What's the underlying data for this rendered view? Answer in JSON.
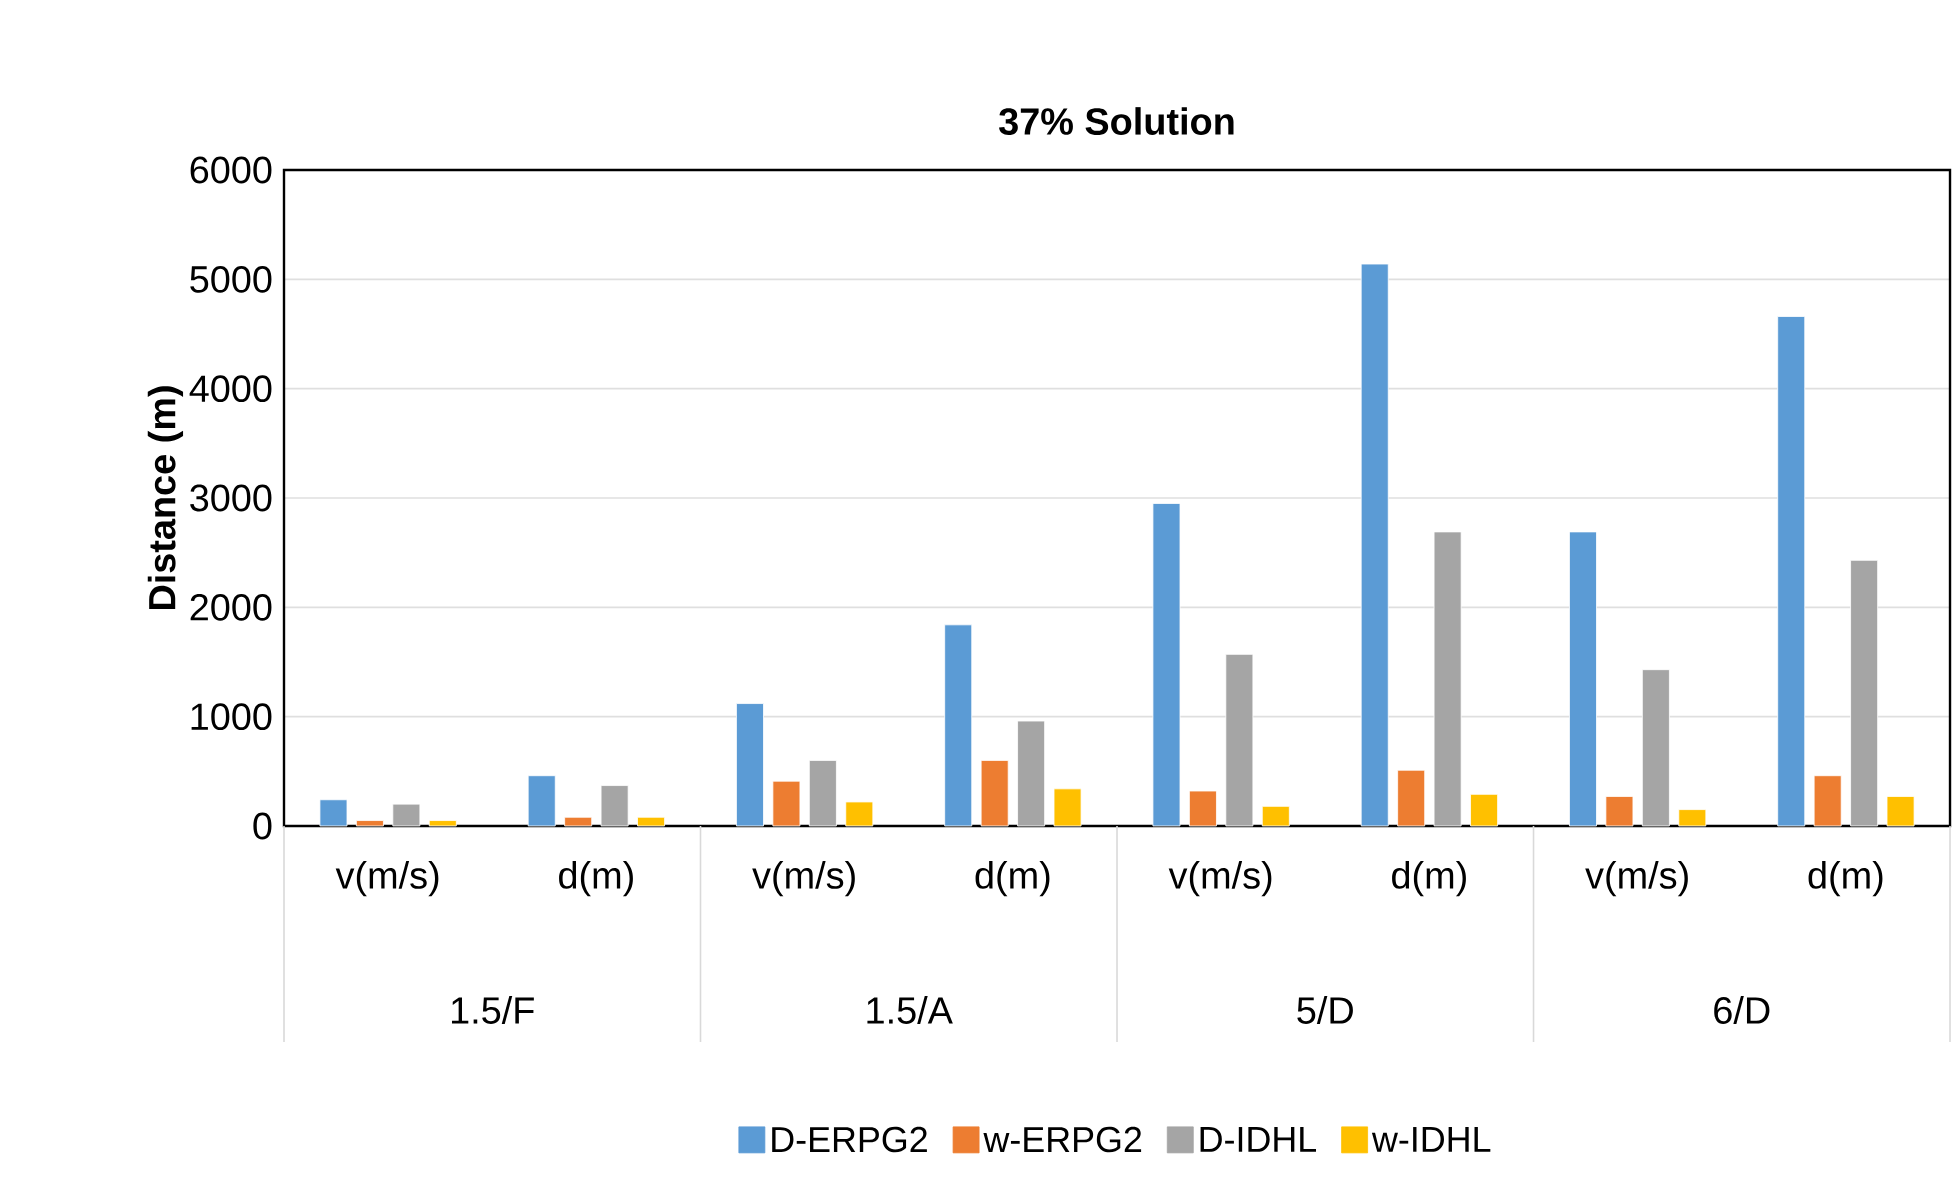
{
  "chart_data": {
    "type": "bar",
    "title": "37% Solution",
    "ylabel": "Distance (m)",
    "categories": [
      "v(m/s)",
      "d(m)",
      "v(m/s)",
      "d(m)",
      "v(m/s)",
      "d(m)",
      "v(m/s)",
      "d(m)"
    ],
    "annotations": [
      "1.5/F",
      "1.5/A",
      "5/D",
      "6/D"
    ],
    "series": [
      {
        "name": "D-ERPG2",
        "color": "#5b9bd5",
        "values": [
          240,
          460,
          1120,
          1840,
          2950,
          5140,
          2690,
          4660
        ]
      },
      {
        "name": "w-ERPG2",
        "color": "#ed7d31",
        "values": [
          50,
          80,
          410,
          600,
          320,
          510,
          270,
          460
        ]
      },
      {
        "name": "D-IDHL",
        "color": "#a5a5a5",
        "values": [
          200,
          370,
          600,
          960,
          1570,
          2690,
          1430,
          2430
        ]
      },
      {
        "name": "w-IDHL",
        "color": "#ffc000",
        "values": [
          50,
          80,
          220,
          340,
          180,
          290,
          150,
          270
        ]
      }
    ],
    "ylim": [
      0,
      6000
    ],
    "yticks": [
      0,
      1000,
      2000,
      3000,
      4000,
      5000,
      6000
    ],
    "grid": "y",
    "legend": "bottom"
  }
}
